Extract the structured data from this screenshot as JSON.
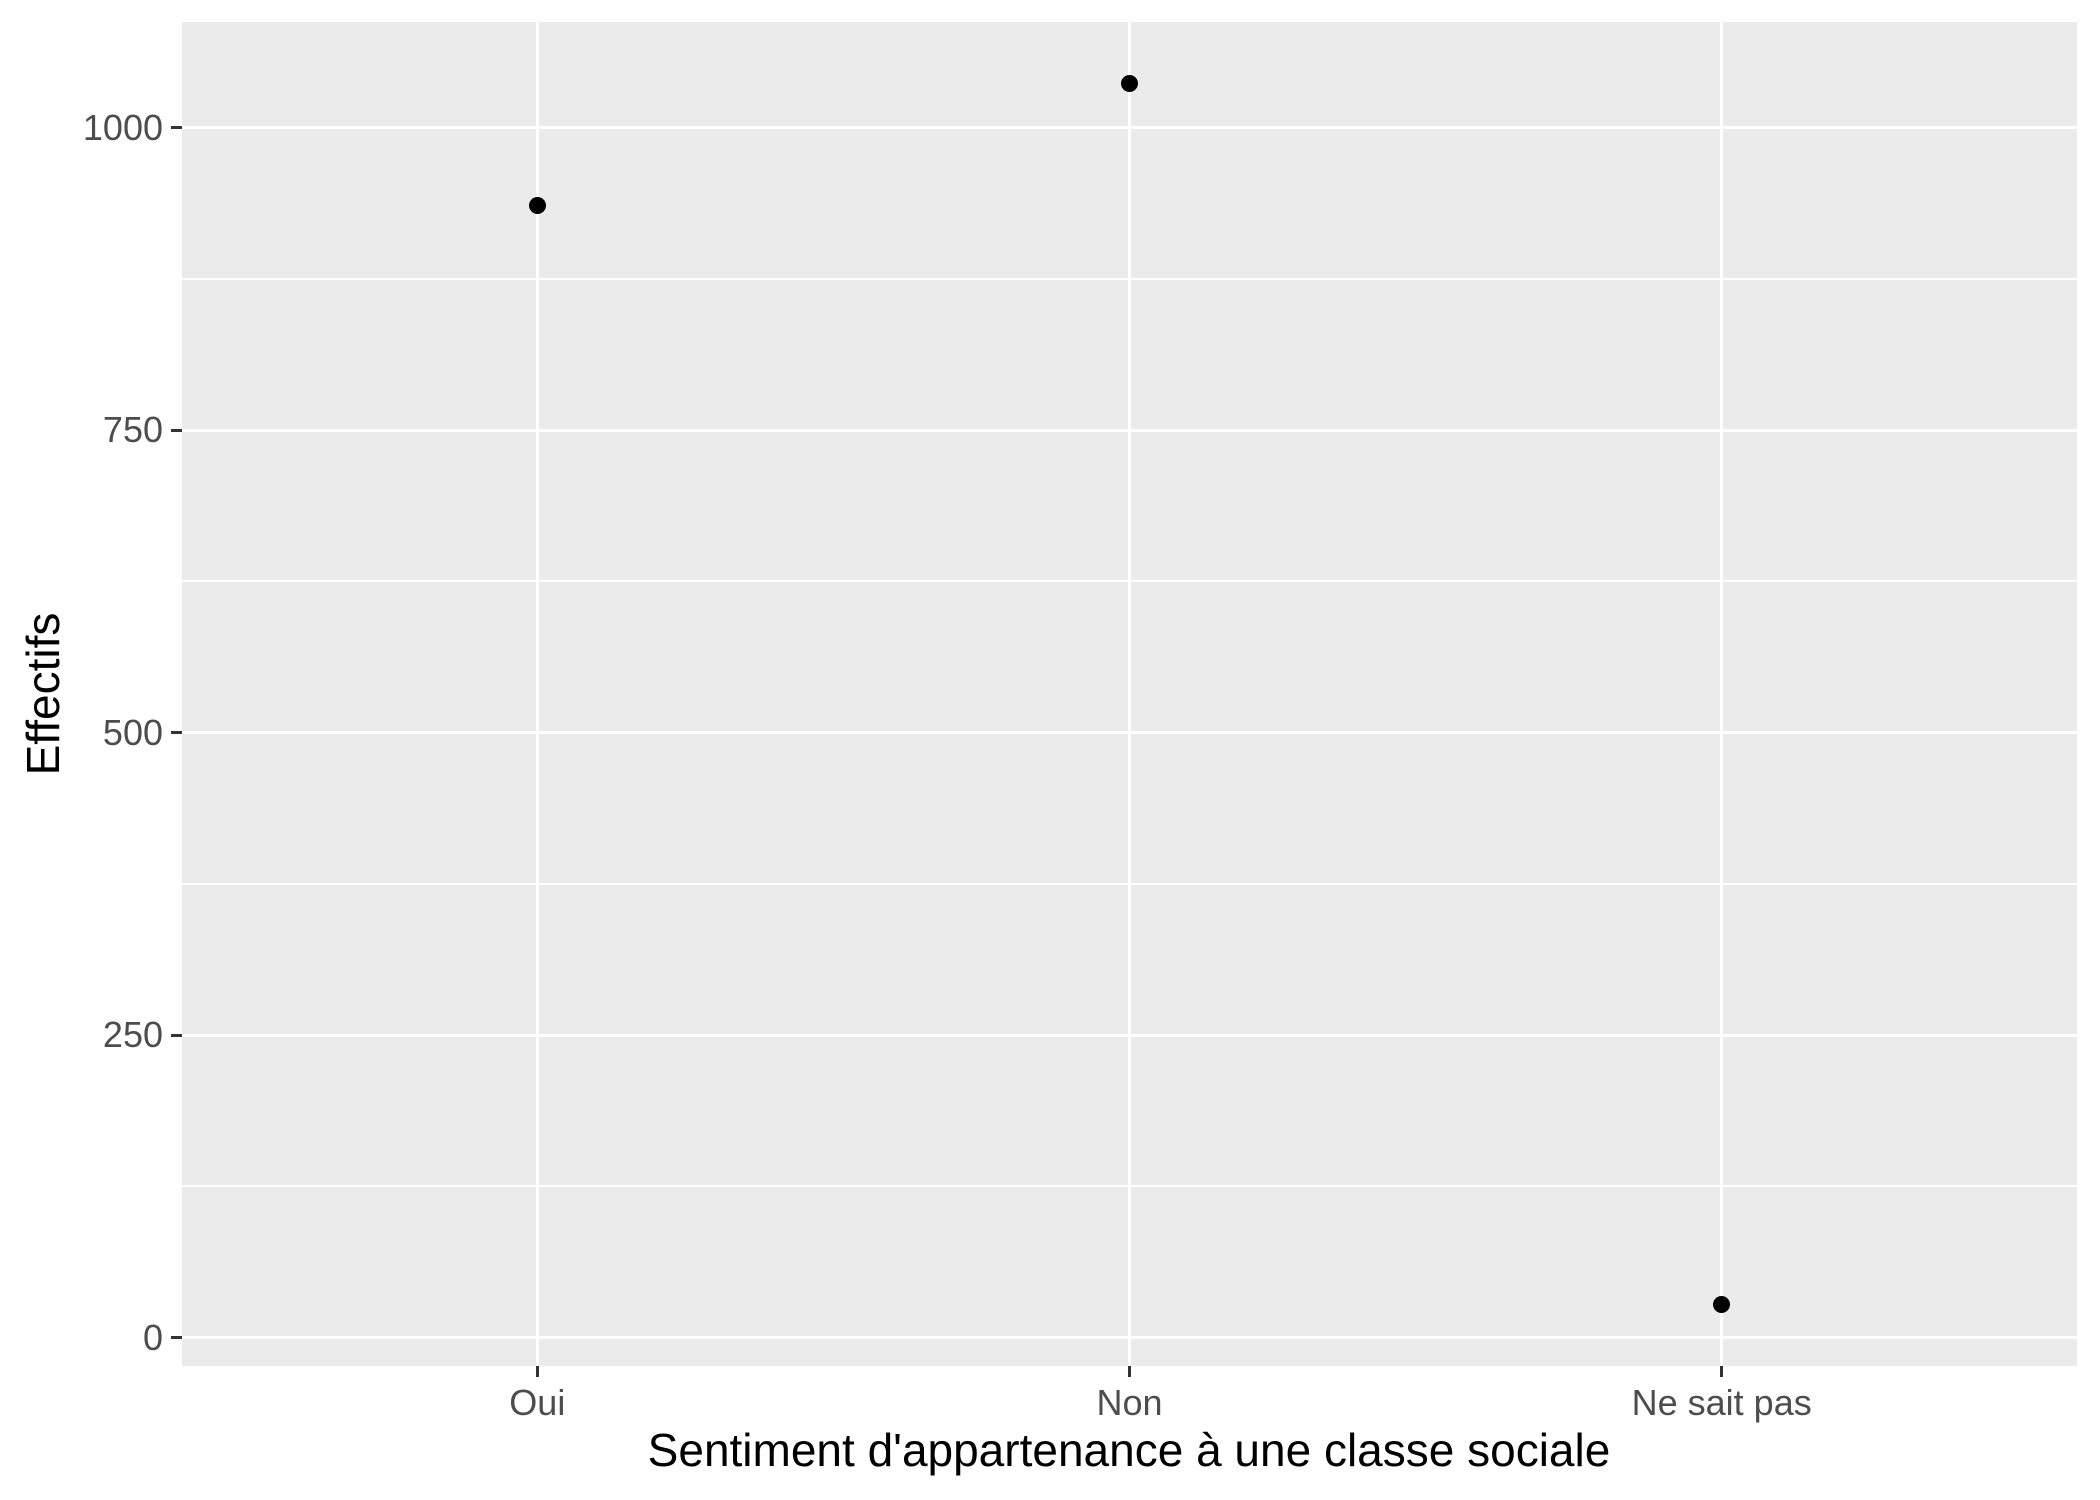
{
  "chart_data": {
    "type": "scatter",
    "title": "",
    "categories": [
      "Oui",
      "Non",
      "Ne sait pas"
    ],
    "values": [
      936,
      1037,
      27
    ],
    "xlabel": "Sentiment d'appartenance à une classe sociale",
    "ylabel": "Effectifs",
    "y_ticks": [
      0,
      250,
      500,
      750,
      1000
    ],
    "y_minor_ticks": [
      125,
      375,
      625,
      875
    ],
    "ylim": [
      -23.5,
      1087.5
    ],
    "grid": true,
    "legend": false,
    "style": {
      "background": "#FFFFFF",
      "panel_bg": "#EBEBEB",
      "grid_color": "#FFFFFF",
      "point_color": "#000000",
      "tick_label_color": "#4D4D4D",
      "tick_mark_color": "#333333",
      "axis_title_color": "#000000"
    }
  }
}
